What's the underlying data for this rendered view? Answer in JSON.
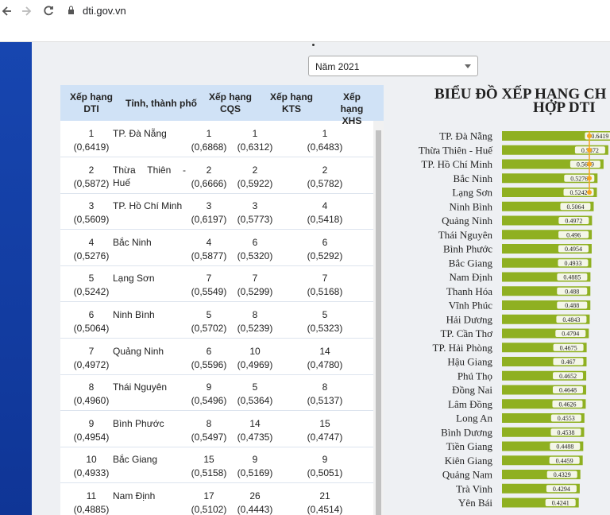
{
  "browser": {
    "url": "dti.gov.vn"
  },
  "year_select": "Năm 2021",
  "table": {
    "headers": [
      "Xếp hạng\nDTI",
      "Tỉnh, thành phố",
      "Xếp hạng\nCQS",
      "Xếp hạng\nKTS",
      "Xếp hạng\nXHS"
    ],
    "rows": [
      [
        "1",
        "(0,6419)",
        "TP. Đà Nẵng",
        "1",
        "(0,6868)",
        "1",
        "(0,6312)",
        "1",
        "(0,6483)"
      ],
      [
        "2",
        "(0,5872)",
        "Thừa Thiên - Huế",
        "2",
        "(0,6666)",
        "2",
        "(0,5922)",
        "2",
        "(0,5782)"
      ],
      [
        "3",
        "(0,5609)",
        "TP. Hồ Chí Minh",
        "3",
        "(0,6197)",
        "3",
        "(0,5773)",
        "4",
        "(0,5418)"
      ],
      [
        "4",
        "(0,5276)",
        "Bắc Ninh",
        "4",
        "(0,5877)",
        "6",
        "(0,5320)",
        "6",
        "(0,5292)"
      ],
      [
        "5",
        "(0,5242)",
        "Lạng Sơn",
        "7",
        "(0,5549)",
        "7",
        "(0,5299)",
        "7",
        "(0,5168)"
      ],
      [
        "6",
        "(0,5064)",
        "Ninh Bình",
        "5",
        "(0,5702)",
        "8",
        "(0,5239)",
        "5",
        "(0,5323)"
      ],
      [
        "7",
        "(0,4972)",
        "Quảng Ninh",
        "6",
        "(0,5596)",
        "10",
        "(0,4969)",
        "14",
        "(0,4780)"
      ],
      [
        "8",
        "(0,4960)",
        "Thái Nguyên",
        "9",
        "(0,5496)",
        "5",
        "(0,5364)",
        "8",
        "(0,5137)"
      ],
      [
        "9",
        "(0,4954)",
        "Bình Phước",
        "8",
        "(0,5497)",
        "14",
        "(0,4735)",
        "15",
        "(0,4747)"
      ],
      [
        "10",
        "(0,4933)",
        "Bắc Giang",
        "15",
        "(0,5158)",
        "9",
        "(0,5169)",
        "9",
        "(0,5051)"
      ],
      [
        "11",
        "(0,4885)",
        "Nam Định",
        "17",
        "(0,5102)",
        "26",
        "(0,4443)",
        "21",
        "(0,4514)"
      ]
    ]
  },
  "chart": {
    "title_lines": [
      "BIỂU ĐỒ XẾP HẠNG CH",
      "HỢP DTI"
    ],
    "color": "#8fb021",
    "categories": [
      "TP. Đà Nẵng",
      "Thừa Thiên - Huế",
      "TP. Hồ Chí Minh",
      "Bắc Ninh",
      "Lạng Sơn",
      "Ninh Bình",
      "Quảng Ninh",
      "Thái Nguyên",
      "Bình Phước",
      "Bắc Giang",
      "Nam Định",
      "Thanh Hóa",
      "Vĩnh Phúc",
      "Hải Dương",
      "TP. Cần Thơ",
      "TP. Hải Phòng",
      "Hậu Giang",
      "Phú Thọ",
      "Đồng Nai",
      "Lâm Đồng",
      "Long An",
      "Bình Dương",
      "Tiền Giang",
      "Kiên Giang",
      "Quảng Nam",
      "Trà Vinh",
      "Yên Bái"
    ],
    "values": [
      0.6419,
      0.5872,
      0.5609,
      0.5276,
      0.5242,
      0.5064,
      0.4972,
      0.496,
      0.4954,
      0.4933,
      0.4885,
      0.488,
      0.488,
      0.4843,
      0.4794,
      0.4675,
      0.467,
      0.4652,
      0.4648,
      0.4626,
      0.4553,
      0.4538,
      0.4488,
      0.4459,
      0.4329,
      0.4294,
      0.4241
    ]
  }
}
